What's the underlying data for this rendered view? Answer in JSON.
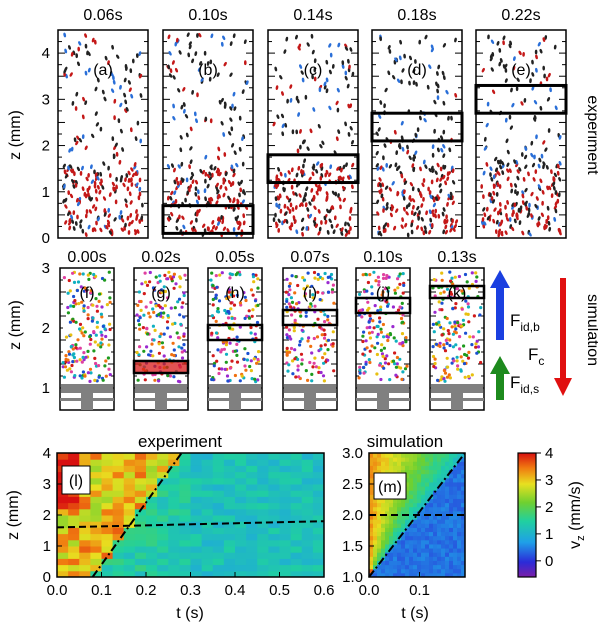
{
  "experiment": {
    "side_label": "experiment",
    "ylabel": "z (mm)",
    "yticks": [
      "0",
      "1",
      "2",
      "3",
      "4"
    ],
    "panels": [
      {
        "tag": "(a)",
        "time": "0.06s",
        "band": null
      },
      {
        "tag": "(b)",
        "time": "0.10s",
        "band": [
          0.1,
          0.7
        ]
      },
      {
        "tag": "(c)",
        "time": "0.14s",
        "band": [
          1.2,
          1.8
        ]
      },
      {
        "tag": "(d)",
        "time": "0.18s",
        "band": [
          2.1,
          2.7
        ]
      },
      {
        "tag": "(e)",
        "time": "0.22s",
        "band": [
          2.7,
          3.3
        ]
      }
    ]
  },
  "simulation": {
    "side_label": "simulation",
    "ylabel": "z (mm)",
    "yticks": [
      "1",
      "2",
      "3"
    ],
    "panels": [
      {
        "tag": "(f)",
        "time": "0.00s",
        "band": null
      },
      {
        "tag": "(g)",
        "time": "0.02s",
        "band": [
          1.25,
          1.45
        ]
      },
      {
        "tag": "(h)",
        "time": "0.05s",
        "band": [
          1.8,
          2.05
        ]
      },
      {
        "tag": "(i)",
        "time": "0.07s",
        "band": [
          2.05,
          2.3
        ]
      },
      {
        "tag": "(j)",
        "time": "0.10s",
        "band": [
          2.25,
          2.5
        ]
      },
      {
        "tag": "(k)",
        "time": "0.13s",
        "band": [
          2.5,
          2.7
        ]
      }
    ],
    "forces": {
      "fid_b": {
        "main": "F",
        "sub": "id,b"
      },
      "fc": {
        "main": "F",
        "sub": "c"
      },
      "fid_s": {
        "main": "F",
        "sub": "id,s"
      }
    }
  },
  "colors": {
    "red": "#d11a1a",
    "blue": "#1a4fd1",
    "green": "#1d8a1d",
    "gray": "#808080"
  },
  "chart_data": [
    {
      "type": "heatmap",
      "tag": "(l)",
      "title": "experiment",
      "xlabel": "t (s)",
      "ylabel": "z (mm)",
      "xlim": [
        0,
        0.6
      ],
      "ylim": [
        0,
        4
      ],
      "xticks": [
        "0.0",
        "0.1",
        "0.2",
        "0.3",
        "0.4",
        "0.5",
        "0.6"
      ],
      "yticks": [
        "0",
        "1",
        "2",
        "3",
        "4"
      ],
      "dashed_line": {
        "x": [
          0.0,
          0.6
        ],
        "y": [
          1.6,
          1.8
        ]
      },
      "dash_dot_line": {
        "x": [
          0.08,
          0.28
        ],
        "y": [
          0.0,
          4.0
        ]
      }
    },
    {
      "type": "heatmap",
      "tag": "(m)",
      "title": "simulation",
      "xlabel": "t (s)",
      "xlim": [
        0,
        0.19
      ],
      "ylim": [
        1.0,
        3.0
      ],
      "xticks": [
        "0.0",
        "0.1"
      ],
      "yticks": [
        "1.0",
        "1.5",
        "2.0",
        "2.5",
        "3.0"
      ],
      "dashed_line": {
        "x": [
          0.0,
          0.19
        ],
        "y": [
          2.0,
          2.0
        ]
      },
      "dash_dot_line": {
        "x": [
          0.0,
          0.19
        ],
        "y": [
          1.0,
          3.0
        ]
      }
    }
  ],
  "colorbar": {
    "label_main": "v",
    "label_sub": "z",
    "label_unit": " (mm/s)",
    "ticks": [
      "0",
      "1",
      "2",
      "3",
      "4"
    ],
    "range": [
      -0.6,
      4
    ]
  }
}
